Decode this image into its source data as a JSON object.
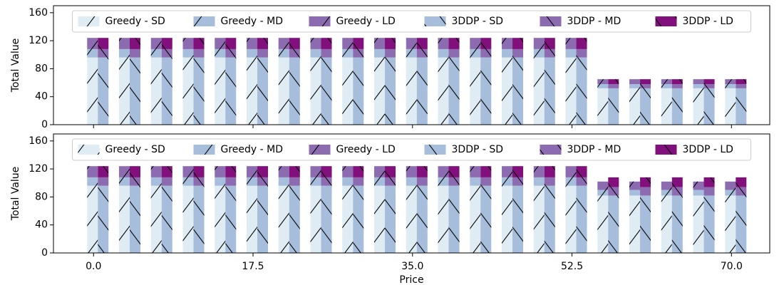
{
  "chart_data": [
    {
      "type": "bar",
      "ylabel": "Total Value",
      "x": [
        0,
        3.5,
        7,
        10.5,
        14,
        17.5,
        21,
        24.5,
        28,
        31.5,
        35,
        38.5,
        42,
        45.5,
        49,
        52.5,
        56,
        59.5,
        63,
        66.5,
        70
      ],
      "xlim": [
        -4.4,
        74.2
      ],
      "xticks": [
        0,
        17.5,
        35,
        52.5,
        70
      ],
      "show_xticklabels": false,
      "ylim": [
        0,
        170
      ],
      "yticks": [
        0,
        40,
        80,
        120,
        160
      ],
      "legend": "upper center",
      "series": [
        {
          "name": "Greedy - SD",
          "color": "#e0ecf4",
          "hatch": "/",
          "values": [
            96,
            96,
            96,
            96,
            96,
            96,
            96,
            96,
            96,
            96,
            96,
            96,
            96,
            96,
            96,
            96,
            52,
            52,
            52,
            52,
            52
          ]
        },
        {
          "name": "Greedy - MD",
          "color": "#a6bddb",
          "hatch": "/",
          "values": [
            12,
            12,
            12,
            12,
            12,
            12,
            12,
            12,
            12,
            12,
            12,
            12,
            12,
            12,
            12,
            12,
            6,
            6,
            6,
            6,
            6
          ]
        },
        {
          "name": "Greedy - LD",
          "color": "#8c6bb1",
          "hatch": "/",
          "values": [
            16,
            16,
            16,
            16,
            16,
            16,
            16,
            16,
            16,
            16,
            16,
            16,
            16,
            16,
            16,
            16,
            7,
            7,
            7,
            7,
            7
          ]
        },
        {
          "name": "3DDP - SD",
          "color": "#a6bddb",
          "hatch": "\\",
          "values": [
            96,
            96,
            96,
            96,
            96,
            96,
            96,
            96,
            96,
            96,
            96,
            96,
            96,
            96,
            96,
            96,
            52,
            52,
            52,
            52,
            52
          ]
        },
        {
          "name": "3DDP - MD",
          "color": "#8c6bb1",
          "hatch": "\\",
          "values": [
            12,
            12,
            12,
            12,
            12,
            12,
            12,
            12,
            12,
            12,
            12,
            12,
            12,
            12,
            12,
            12,
            6,
            6,
            6,
            6,
            6
          ]
        },
        {
          "name": "3DDP - LD",
          "color": "#810f7c",
          "hatch": "\\",
          "values": [
            16,
            16,
            16,
            16,
            16,
            16,
            16,
            16,
            16,
            16,
            16,
            16,
            16,
            16,
            16,
            16,
            7,
            7,
            7,
            7,
            7
          ]
        }
      ]
    },
    {
      "type": "bar",
      "ylabel": "Total Value",
      "xlabel": "Price",
      "x": [
        0,
        3.5,
        7,
        10.5,
        14,
        17.5,
        21,
        24.5,
        28,
        31.5,
        35,
        38.5,
        42,
        45.5,
        49,
        52.5,
        56,
        59.5,
        63,
        66.5,
        70
      ],
      "xlim": [
        -4.4,
        74.2
      ],
      "xticks": [
        {
          "value": 0,
          "label": "0.0"
        },
        {
          "value": 17.5,
          "label": "17.5"
        },
        {
          "value": 35,
          "label": "35.0"
        },
        {
          "value": 52.5,
          "label": "52.5"
        },
        {
          "value": 70,
          "label": "70.0"
        }
      ],
      "show_xticklabels": true,
      "ylim": [
        0,
        170
      ],
      "yticks": [
        0,
        40,
        80,
        120,
        160
      ],
      "legend": "upper center",
      "series": [
        {
          "name": "Greedy - SD",
          "color": "#e0ecf4",
          "hatch": "/",
          "values": [
            96,
            96,
            96,
            96,
            96,
            96,
            96,
            96,
            96,
            96,
            96,
            96,
            96,
            96,
            96,
            96,
            82,
            82,
            82,
            82,
            82
          ]
        },
        {
          "name": "Greedy - MD",
          "color": "#a6bddb",
          "hatch": "/",
          "values": [
            12,
            12,
            12,
            12,
            12,
            12,
            12,
            12,
            12,
            12,
            12,
            12,
            12,
            12,
            12,
            12,
            8,
            8,
            8,
            8,
            8
          ]
        },
        {
          "name": "Greedy - LD",
          "color": "#8c6bb1",
          "hatch": "/",
          "values": [
            16,
            16,
            16,
            16,
            16,
            16,
            16,
            16,
            16,
            16,
            16,
            16,
            16,
            16,
            16,
            16,
            12,
            12,
            12,
            12,
            12
          ]
        },
        {
          "name": "3DDP - SD",
          "color": "#a6bddb",
          "hatch": "\\",
          "values": [
            96,
            96,
            96,
            96,
            96,
            96,
            96,
            96,
            96,
            96,
            96,
            96,
            96,
            96,
            96,
            96,
            82,
            82,
            82,
            82,
            82
          ]
        },
        {
          "name": "3DDP - MD",
          "color": "#8c6bb1",
          "hatch": "\\",
          "values": [
            12,
            12,
            12,
            12,
            12,
            12,
            12,
            12,
            12,
            12,
            12,
            12,
            12,
            12,
            12,
            12,
            12,
            12,
            12,
            12,
            12
          ]
        },
        {
          "name": "3DDP - LD",
          "color": "#810f7c",
          "hatch": "\\",
          "values": [
            16,
            16,
            16,
            16,
            16,
            16,
            16,
            16,
            16,
            16,
            16,
            16,
            16,
            16,
            16,
            16,
            14,
            14,
            14,
            14,
            14
          ]
        }
      ]
    }
  ]
}
